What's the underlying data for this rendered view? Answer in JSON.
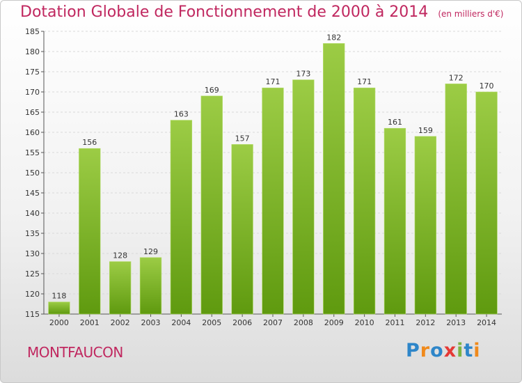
{
  "header": {
    "title": "Dotation Globale de Fonctionnement de 2000 à 2014",
    "unit": "(en milliers d'€)"
  },
  "commune": "MONTFAUCON",
  "logo": {
    "text": "Proxiti",
    "letters": [
      {
        "ch": "P",
        "color": "#2e86c9"
      },
      {
        "ch": "r",
        "color": "#f08a1c"
      },
      {
        "ch": "o",
        "color": "#2e86c9"
      },
      {
        "ch": "x",
        "color": "#e53935"
      },
      {
        "ch": "i",
        "color": "#7cb342"
      },
      {
        "ch": "t",
        "color": "#2e86c9"
      },
      {
        "ch": "i",
        "color": "#f08a1c"
      }
    ]
  },
  "colors": {
    "bar_top": "#9ccc45",
    "bar_bottom": "#5f9a0f",
    "grid": "#d9d9d9",
    "title": "#c0275f"
  },
  "chart_data": {
    "type": "bar",
    "title": "Dotation Globale de Fonctionnement de 2000 à 2014",
    "subtitle": "(en milliers d'€)",
    "xlabel": "",
    "ylabel": "",
    "categories": [
      "2000",
      "2001",
      "2002",
      "2003",
      "2004",
      "2005",
      "2006",
      "2007",
      "2008",
      "2009",
      "2010",
      "2011",
      "2012",
      "2013",
      "2014"
    ],
    "values": [
      118,
      156,
      128,
      129,
      163,
      169,
      157,
      171,
      173,
      182,
      171,
      161,
      159,
      172,
      170
    ],
    "ylim": [
      115,
      185
    ],
    "yticks": [
      115,
      120,
      125,
      130,
      135,
      140,
      145,
      150,
      155,
      160,
      165,
      170,
      175,
      180,
      185
    ],
    "grid": true,
    "legend": "none"
  }
}
